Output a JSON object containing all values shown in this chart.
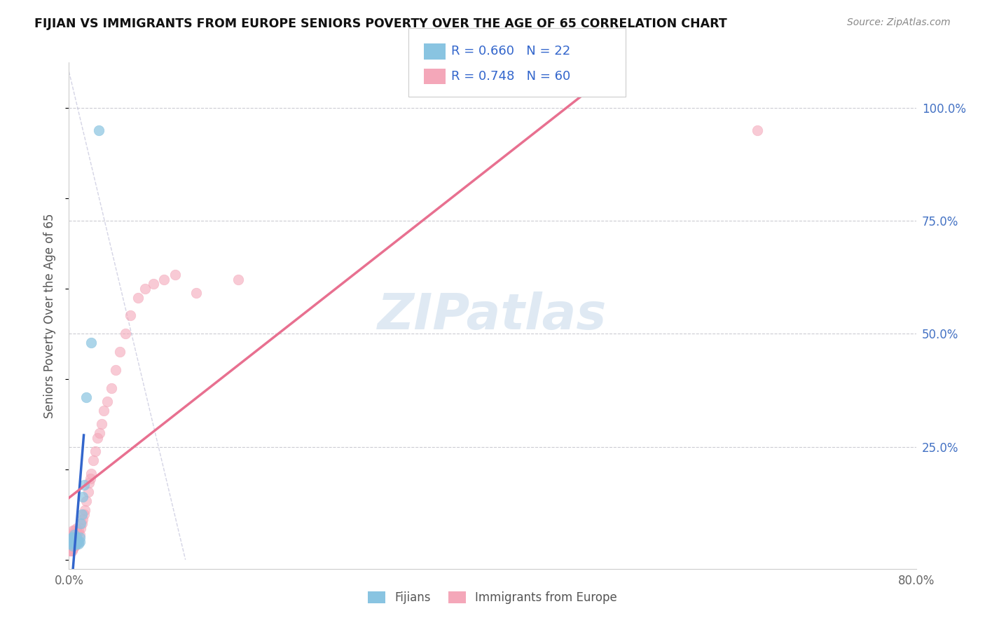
{
  "title": "FIJIAN VS IMMIGRANTS FROM EUROPE SENIORS POVERTY OVER THE AGE OF 65 CORRELATION CHART",
  "source": "Source: ZipAtlas.com",
  "ylabel": "Seniors Poverty Over the Age of 65",
  "xlim": [
    0.0,
    0.8
  ],
  "ylim": [
    -0.02,
    1.1
  ],
  "yticks_right": [
    0.0,
    0.25,
    0.5,
    0.75,
    1.0
  ],
  "yticklabels_right": [
    "",
    "25.0%",
    "50.0%",
    "75.0%",
    "100.0%"
  ],
  "legend_r_fijian": "R = 0.660",
  "legend_n_fijian": "N = 22",
  "legend_r_europe": "R = 0.748",
  "legend_n_europe": "N = 60",
  "fijian_color": "#89c4e1",
  "europe_color": "#f4a7b9",
  "fijian_line_color": "#3366cc",
  "europe_line_color": "#e87090",
  "watermark": "ZIPatlas",
  "background_color": "#ffffff",
  "grid_color": "#c0c0c8",
  "fijian_x": [
    0.001,
    0.002,
    0.003,
    0.003,
    0.004,
    0.004,
    0.005,
    0.005,
    0.006,
    0.007,
    0.007,
    0.008,
    0.009,
    0.01,
    0.01,
    0.011,
    0.012,
    0.013,
    0.014,
    0.016,
    0.021,
    0.028
  ],
  "fijian_y": [
    0.035,
    0.04,
    0.04,
    0.05,
    0.03,
    0.05,
    0.04,
    0.055,
    0.04,
    0.035,
    0.05,
    0.04,
    0.035,
    0.04,
    0.05,
    0.08,
    0.1,
    0.14,
    0.165,
    0.36,
    0.48,
    0.95
  ],
  "europe_x": [
    0.001,
    0.001,
    0.001,
    0.002,
    0.002,
    0.002,
    0.003,
    0.003,
    0.003,
    0.003,
    0.004,
    0.004,
    0.004,
    0.004,
    0.004,
    0.005,
    0.005,
    0.005,
    0.005,
    0.006,
    0.006,
    0.006,
    0.007,
    0.007,
    0.007,
    0.008,
    0.008,
    0.009,
    0.009,
    0.01,
    0.011,
    0.012,
    0.013,
    0.014,
    0.015,
    0.016,
    0.018,
    0.019,
    0.02,
    0.021,
    0.023,
    0.025,
    0.027,
    0.029,
    0.031,
    0.033,
    0.036,
    0.04,
    0.044,
    0.048,
    0.053,
    0.058,
    0.065,
    0.072,
    0.08,
    0.09,
    0.1,
    0.12,
    0.16,
    0.65
  ],
  "europe_y": [
    0.02,
    0.03,
    0.04,
    0.02,
    0.03,
    0.05,
    0.02,
    0.035,
    0.04,
    0.055,
    0.025,
    0.035,
    0.04,
    0.05,
    0.065,
    0.03,
    0.04,
    0.05,
    0.065,
    0.03,
    0.04,
    0.06,
    0.035,
    0.05,
    0.07,
    0.04,
    0.06,
    0.04,
    0.065,
    0.055,
    0.07,
    0.08,
    0.09,
    0.1,
    0.11,
    0.13,
    0.15,
    0.17,
    0.18,
    0.19,
    0.22,
    0.24,
    0.27,
    0.28,
    0.3,
    0.33,
    0.35,
    0.38,
    0.42,
    0.46,
    0.5,
    0.54,
    0.58,
    0.6,
    0.61,
    0.62,
    0.63,
    0.59,
    0.62,
    0.95
  ]
}
